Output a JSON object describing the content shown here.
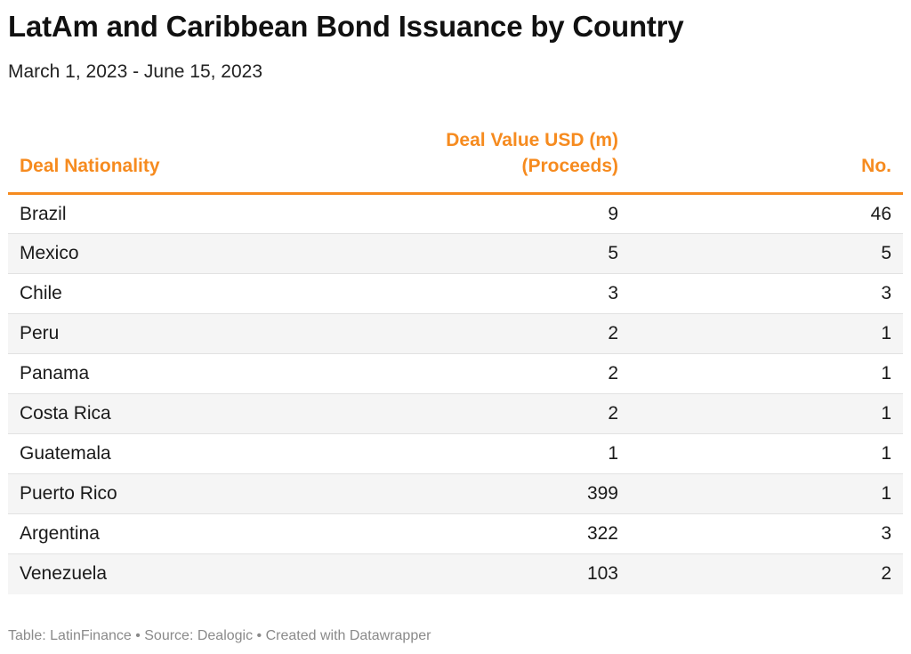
{
  "title": "LatAm and Caribbean Bond Issuance by Country",
  "subtitle": "March 1, 2023 - June 15, 2023",
  "footer": "Table: LatinFinance • Source: Dealogic • Created with Datawrapper",
  "colors": {
    "accent": "#f68b1f",
    "row_stripe": "#f5f5f5",
    "divider": "#e2e2e2",
    "footer_text": "#8a8a8a"
  },
  "chart_data": {
    "type": "table",
    "title": "LatAm and Caribbean Bond Issuance by Country",
    "subtitle": "March 1, 2023 - June 15, 2023",
    "columns": [
      {
        "key": "nationality",
        "label": "Deal Nationality",
        "align": "left"
      },
      {
        "key": "value",
        "label": "Deal Value USD (m) (Proceeds)",
        "align": "right"
      },
      {
        "key": "count",
        "label": "No.",
        "align": "right"
      }
    ],
    "rows": [
      {
        "nationality": "Brazil",
        "value": 9,
        "count": 46
      },
      {
        "nationality": "Mexico",
        "value": 5,
        "count": 5
      },
      {
        "nationality": "Chile",
        "value": 3,
        "count": 3
      },
      {
        "nationality": "Peru",
        "value": 2,
        "count": 1
      },
      {
        "nationality": "Panama",
        "value": 2,
        "count": 1
      },
      {
        "nationality": "Costa Rica",
        "value": 2,
        "count": 1
      },
      {
        "nationality": "Guatemala",
        "value": 1,
        "count": 1
      },
      {
        "nationality": "Puerto Rico",
        "value": 399,
        "count": 1
      },
      {
        "nationality": "Argentina",
        "value": 322,
        "count": 3
      },
      {
        "nationality": "Venezuela",
        "value": 103,
        "count": 2
      }
    ],
    "source": "Table: LatinFinance • Source: Dealogic • Created with Datawrapper"
  }
}
